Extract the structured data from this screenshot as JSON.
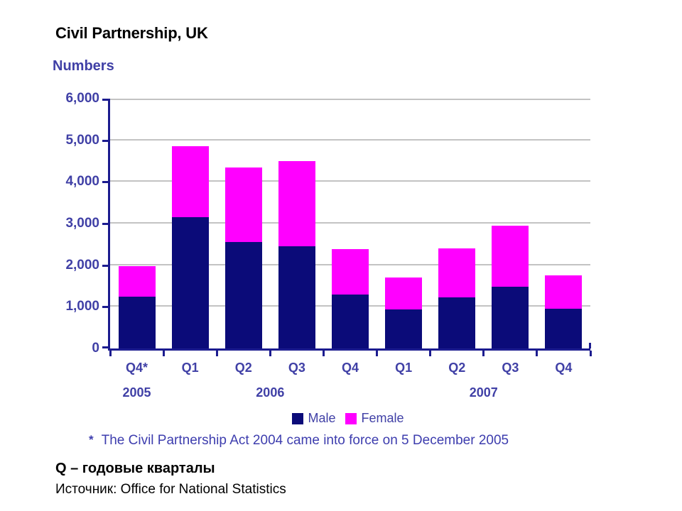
{
  "title": "Civil Partnership, UK",
  "ylabel_note": "Numbers",
  "footnote": {
    "marker": "*",
    "text": "The Civil Partnership Act 2004 came into force on 5 December 2005"
  },
  "caption": {
    "line1": "Q – годовые кварталы",
    "line2": "Источник: Office for National Statistics"
  },
  "colors": {
    "bar_male": "#0b0b79",
    "bar_female": "#ff00ff",
    "axis": "#1c1c8f",
    "grid": "#c3c3c3",
    "label": "#4040a6",
    "note": "#3d3dae",
    "text": "#000000"
  },
  "chart_data": {
    "type": "bar",
    "stacked": true,
    "title": "Civil Partnership, UK",
    "ylabel": "Numbers",
    "xlabel": "",
    "categories": [
      "Q4*",
      "Q1",
      "Q2",
      "Q3",
      "Q4",
      "Q1",
      "Q2",
      "Q3",
      "Q4"
    ],
    "year_groups": [
      {
        "label": "2005",
        "center_slot": 0.5
      },
      {
        "label": "2006",
        "center_slot": 3
      },
      {
        "label": "2007",
        "center_slot": 7
      }
    ],
    "series": [
      {
        "name": "Male",
        "color": "#0b0b79",
        "values": [
          1250,
          3150,
          2550,
          2450,
          1300,
          930,
          1230,
          1480,
          960
        ]
      },
      {
        "name": "Female",
        "color": "#ff00ff",
        "values": [
          720,
          1700,
          1800,
          2050,
          1090,
          770,
          1170,
          1470,
          790
        ]
      }
    ],
    "totals": [
      1970,
      4850,
      4350,
      4500,
      2390,
      1700,
      2400,
      2950,
      1750
    ],
    "ylim": [
      0,
      6000
    ],
    "ytick_step": 1000,
    "yticks": [
      "0",
      "1,000",
      "2,000",
      "3,000",
      "4,000",
      "5,000",
      "6,000"
    ],
    "grid": true,
    "legend_position": "bottom"
  }
}
